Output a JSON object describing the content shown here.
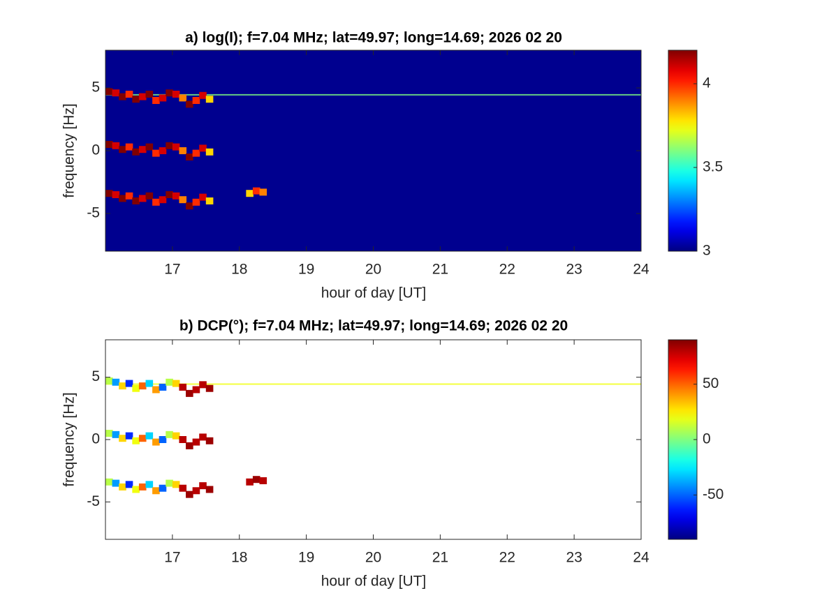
{
  "chart_data": [
    {
      "type": "heatmap",
      "title": "a) log(I); f=7.04 MHz;  lat=49.97; long=14.69; 2026 02 20",
      "xlabel": "hour of day [UT]",
      "ylabel": "frequency [Hz]",
      "xlim": [
        16,
        24
      ],
      "xticks": [
        17,
        18,
        19,
        20,
        21,
        22,
        23,
        24
      ],
      "ylim": [
        -8,
        8
      ],
      "yticks": [
        -5,
        0,
        5
      ],
      "colormap": "jet",
      "clim": [
        3,
        4.2
      ],
      "cticks": [
        3,
        3.5,
        4
      ],
      "background": "#00008f",
      "carrier": {
        "y": 4.45,
        "value": 3.6
      },
      "series": [
        {
          "x": [
            16.0,
            16.1,
            16.2,
            16.3,
            16.4,
            16.5,
            16.6,
            16.7,
            16.8,
            16.9,
            17.0,
            17.1,
            17.2,
            17.3,
            17.4,
            17.5
          ],
          "y": [
            4.7,
            4.6,
            4.3,
            4.5,
            4.1,
            4.3,
            4.5,
            4.0,
            4.2,
            4.6,
            4.5,
            4.2,
            3.7,
            4.0,
            4.4,
            4.1
          ],
          "values": [
            4.2,
            4.1,
            4.2,
            4.0,
            4.2,
            4.1,
            4.2,
            4.0,
            4.1,
            4.2,
            4.1,
            3.9,
            4.2,
            4.0,
            4.1,
            3.8
          ]
        },
        {
          "x": [
            16.0,
            16.1,
            16.2,
            16.3,
            16.4,
            16.5,
            16.6,
            16.7,
            16.8,
            16.9,
            17.0,
            17.1,
            17.2,
            17.3,
            17.4,
            17.5
          ],
          "y": [
            0.5,
            0.4,
            0.1,
            0.3,
            -0.1,
            0.1,
            0.3,
            -0.2,
            0,
            0.4,
            0.3,
            0,
            -0.5,
            -0.2,
            0.2,
            -0.1
          ],
          "values": [
            4.2,
            4.1,
            4.2,
            4.0,
            4.2,
            4.1,
            4.2,
            4.0,
            4.1,
            4.2,
            4.1,
            3.9,
            4.2,
            4.0,
            4.1,
            3.8
          ]
        },
        {
          "x": [
            16.0,
            16.1,
            16.2,
            16.3,
            16.4,
            16.5,
            16.6,
            16.7,
            16.8,
            16.9,
            17.0,
            17.1,
            17.2,
            17.3,
            17.4,
            17.5
          ],
          "y": [
            -3.4,
            -3.5,
            -3.8,
            -3.6,
            -4.0,
            -3.8,
            -3.6,
            -4.1,
            -3.9,
            -3.5,
            -3.6,
            -3.9,
            -4.4,
            -4.1,
            -3.7,
            -4.0
          ],
          "values": [
            4.2,
            4.1,
            4.2,
            4.0,
            4.2,
            4.1,
            4.2,
            4.0,
            4.1,
            4.2,
            4.1,
            3.9,
            4.2,
            4.0,
            4.1,
            3.8
          ]
        },
        {
          "x": [
            18.1,
            18.2,
            18.3
          ],
          "y": [
            -3.4,
            -3.2,
            -3.3
          ],
          "values": [
            3.8,
            4.0,
            3.9
          ]
        }
      ]
    },
    {
      "type": "heatmap",
      "title": "b) DCP(°); f=7.04 MHz;  lat=49.97; long=14.69; 2026 02 20",
      "xlabel": "hour of day [UT]",
      "ylabel": "frequency [Hz]",
      "xlim": [
        16,
        24
      ],
      "xticks": [
        17,
        18,
        19,
        20,
        21,
        22,
        23,
        24
      ],
      "ylim": [
        -8,
        8
      ],
      "yticks": [
        -5,
        0,
        5
      ],
      "colormap": "jet",
      "clim": [
        -90,
        90
      ],
      "cticks": [
        -50,
        0,
        50
      ],
      "background": "#ffffff",
      "carrier": {
        "y": 4.45,
        "value": 20
      },
      "series": [
        {
          "x": [
            16.0,
            16.1,
            16.2,
            16.3,
            16.4,
            16.5,
            16.6,
            16.7,
            16.8,
            16.9,
            17.0,
            17.1,
            17.2,
            17.3,
            17.4,
            17.5
          ],
          "y": [
            4.7,
            4.6,
            4.3,
            4.5,
            4.1,
            4.3,
            4.5,
            4.0,
            4.2,
            4.6,
            4.5,
            4.2,
            3.7,
            4.0,
            4.4,
            4.1
          ],
          "values": [
            10,
            -40,
            30,
            -60,
            20,
            50,
            -30,
            40,
            -50,
            10,
            30,
            80,
            85,
            80,
            80,
            85
          ]
        },
        {
          "x": [
            16.0,
            16.1,
            16.2,
            16.3,
            16.4,
            16.5,
            16.6,
            16.7,
            16.8,
            16.9,
            17.0,
            17.1,
            17.2,
            17.3,
            17.4,
            17.5
          ],
          "y": [
            0.5,
            0.4,
            0.1,
            0.3,
            -0.1,
            0.1,
            0.3,
            -0.2,
            0,
            0.4,
            0.3,
            0,
            -0.5,
            -0.2,
            0.2,
            -0.1
          ],
          "values": [
            10,
            -40,
            30,
            -60,
            20,
            50,
            -30,
            40,
            -50,
            10,
            30,
            80,
            85,
            80,
            80,
            85
          ]
        },
        {
          "x": [
            16.0,
            16.1,
            16.2,
            16.3,
            16.4,
            16.5,
            16.6,
            16.7,
            16.8,
            16.9,
            17.0,
            17.1,
            17.2,
            17.3,
            17.4,
            17.5
          ],
          "y": [
            -3.4,
            -3.5,
            -3.8,
            -3.6,
            -4.0,
            -3.8,
            -3.6,
            -4.1,
            -3.9,
            -3.5,
            -3.6,
            -3.9,
            -4.4,
            -4.1,
            -3.7,
            -4.0
          ],
          "values": [
            10,
            -40,
            30,
            -60,
            20,
            50,
            -30,
            40,
            -50,
            10,
            30,
            80,
            85,
            80,
            80,
            85
          ]
        },
        {
          "x": [
            18.1,
            18.2,
            18.3
          ],
          "y": [
            -3.4,
            -3.2,
            -3.3
          ],
          "values": [
            80,
            85,
            80
          ]
        }
      ]
    }
  ]
}
